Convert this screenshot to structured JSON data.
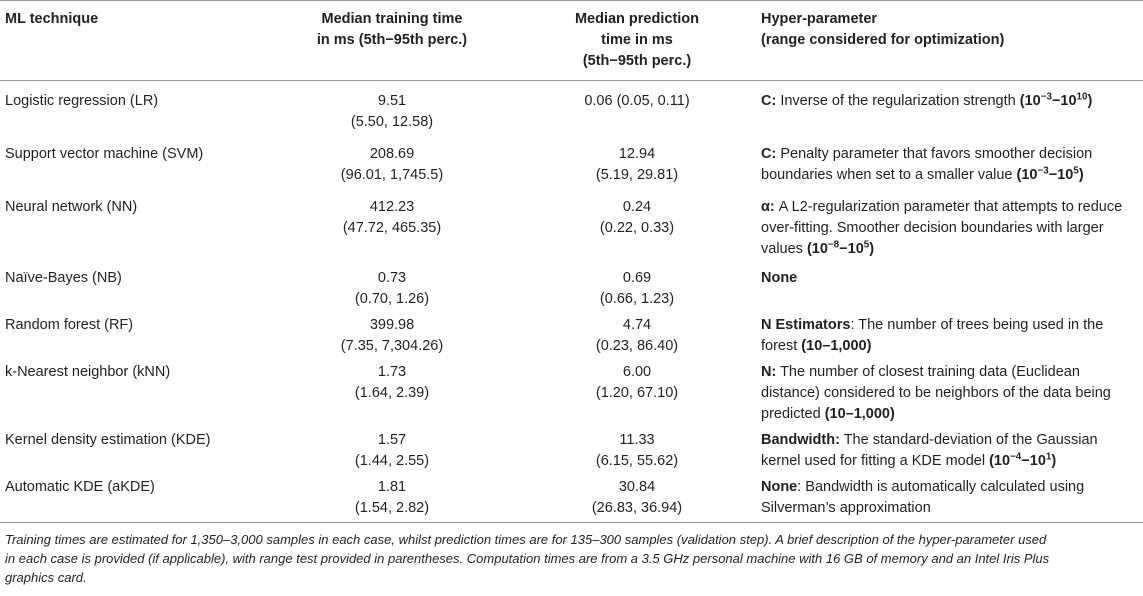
{
  "header": {
    "col1": "ML technique",
    "col2": [
      "Median training time",
      "in ms (5th−95th perc.)"
    ],
    "col3": [
      "Median prediction",
      "time in ms",
      "(5th−95th perc.)"
    ],
    "col4": [
      "Hyper-parameter",
      "(range considered for optimization)"
    ]
  },
  "rows": [
    {
      "technique": "Logistic regression (LR)",
      "train": [
        "9.51",
        "(5.50, 12.58)"
      ],
      "pred": [
        "0.06 (0.05, 0.11)"
      ],
      "hp_lines": [
        [
          {
            "t": "C:",
            "b": true
          },
          {
            "t": " Inverse of the regularization strength "
          },
          {
            "t": "(10",
            "b": true
          },
          {
            "t": "−3",
            "b": true,
            "sup": true
          },
          {
            "t": "−10",
            "b": true
          },
          {
            "t": "10",
            "b": true,
            "sup": true
          },
          {
            "t": ")",
            "b": true
          }
        ]
      ]
    },
    {
      "technique": "Support vector machine (SVM)",
      "train": [
        "208.69",
        "(96.01, 1,745.5)"
      ],
      "pred": [
        "12.94",
        "(5.19, 29.81)"
      ],
      "hp_lines": [
        [
          {
            "t": "C:",
            "b": true
          },
          {
            "t": " Penalty parameter that favors smoother decision"
          }
        ],
        [
          {
            "t": "boundaries when set to a smaller value "
          },
          {
            "t": "(10",
            "b": true
          },
          {
            "t": "−3",
            "b": true,
            "sup": true
          },
          {
            "t": "−10",
            "b": true
          },
          {
            "t": "5",
            "b": true,
            "sup": true
          },
          {
            "t": ")",
            "b": true
          }
        ]
      ]
    },
    {
      "technique": "Neural network (NN)",
      "train": [
        "412.23",
        "(47.72, 465.35)"
      ],
      "pred": [
        "0.24",
        "(0.22, 0.33)"
      ],
      "hp_lines": [
        [
          {
            "t": "α:",
            "b": true
          },
          {
            "t": " A L2-regularization parameter that attempts to reduce"
          }
        ],
        [
          {
            "t": "over-fitting. Smoother decision boundaries with larger"
          }
        ],
        [
          {
            "t": "values "
          },
          {
            "t": "(10",
            "b": true
          },
          {
            "t": "−8",
            "b": true,
            "sup": true
          },
          {
            "t": "−10",
            "b": true
          },
          {
            "t": "5",
            "b": true,
            "sup": true
          },
          {
            "t": ")",
            "b": true
          }
        ]
      ]
    },
    {
      "technique": "Naïve-Bayes (NB)",
      "train": [
        "0.73",
        "(0.70, 1.26)"
      ],
      "pred": [
        "0.69",
        "(0.66, 1.23)"
      ],
      "hp_lines": [
        [
          {
            "t": "None",
            "b": true
          }
        ]
      ]
    },
    {
      "technique": "Random forest (RF)",
      "train": [
        "399.98",
        "(7.35, 7,304.26)"
      ],
      "pred": [
        "4.74",
        "(0.23, 86.40)"
      ],
      "hp_lines": [
        [
          {
            "t": "N Estimators",
            "b": true
          },
          {
            "t": ": The number of trees being used in the"
          }
        ],
        [
          {
            "t": "forest "
          },
          {
            "t": "(10–1,000)",
            "b": true
          }
        ]
      ]
    },
    {
      "technique": "k-Nearest neighbor (kNN)",
      "train": [
        "1.73",
        "(1.64, 2.39)"
      ],
      "pred": [
        "6.00",
        "(1.20, 67.10)"
      ],
      "hp_lines": [
        [
          {
            "t": "N:",
            "b": true
          },
          {
            "t": " The number of closest training data (Euclidean"
          }
        ],
        [
          {
            "t": "distance) considered to be neighbors of the data being"
          }
        ],
        [
          {
            "t": "predicted "
          },
          {
            "t": "(10–1,000)",
            "b": true
          }
        ]
      ]
    },
    {
      "technique": "Kernel density estimation (KDE)",
      "train": [
        "1.57",
        "(1.44, 2.55)"
      ],
      "pred": [
        "11.33",
        "(6.15, 55.62)"
      ],
      "hp_lines": [
        [
          {
            "t": "Bandwidth:",
            "b": true
          },
          {
            "t": " The standard-deviation of the Gaussian"
          }
        ],
        [
          {
            "t": "kernel used for fitting a KDE model "
          },
          {
            "t": "(10",
            "b": true
          },
          {
            "t": "−4",
            "b": true,
            "sup": true
          },
          {
            "t": "−10",
            "b": true
          },
          {
            "t": "1",
            "b": true,
            "sup": true
          },
          {
            "t": ")",
            "b": true
          }
        ]
      ]
    },
    {
      "technique": "Automatic KDE (aKDE)",
      "train": [
        "1.81",
        "(1.54, 2.82)"
      ],
      "pred": [
        "30.84",
        "(26.83, 36.94)"
      ],
      "hp_lines": [
        [
          {
            "t": "None",
            "b": true
          },
          {
            "t": ": Bandwidth is automatically calculated using"
          }
        ],
        [
          {
            "t": "Silverman’s approximation"
          }
        ]
      ]
    }
  ],
  "footnote": [
    "Training times are estimated for 1,350–3,000 samples in each case, whilst prediction times are for 135–300 samples (validation step). A brief description of the hyper-parameter used",
    "in each case is provided (if applicable), with range test provided in parentheses. Computation times are from a 3.5 GHz personal machine with 16 GB of memory and an Intel Iris Plus",
    "graphics card."
  ]
}
